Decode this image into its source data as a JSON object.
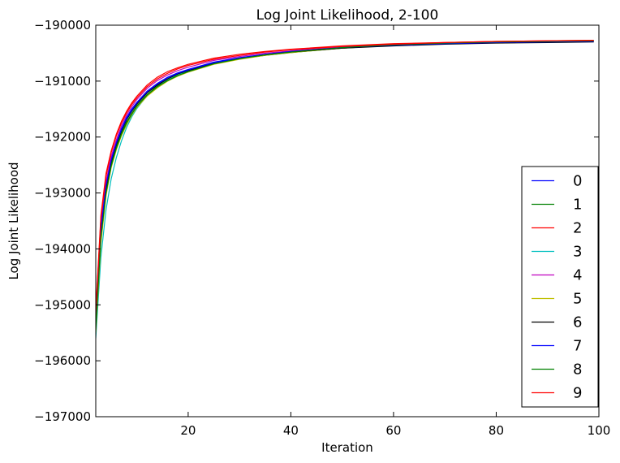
{
  "chart_data": {
    "type": "line",
    "title": "Log Joint Likelihood, 2-100",
    "xlabel": "Iteration",
    "ylabel": "Log Joint Likelihood",
    "xlim": [
      2,
      100
    ],
    "ylim": [
      -197000,
      -190000
    ],
    "xticks": [
      20,
      40,
      60,
      80,
      100
    ],
    "yticks": [
      -197000,
      -196000,
      -195000,
      -194000,
      -193000,
      -192000,
      -191000,
      -190000
    ],
    "xtick_labels": [
      "20",
      "40",
      "60",
      "80",
      "100"
    ],
    "ytick_labels": [
      "−197000",
      "−196000",
      "−195000",
      "−194000",
      "−193000",
      "−192000",
      "−191000",
      "−190000"
    ],
    "grid": false,
    "legend_position": "lower-right",
    "x": [
      2,
      3,
      4,
      5,
      6,
      7,
      8,
      9,
      10,
      12,
      14,
      16,
      18,
      20,
      25,
      30,
      35,
      40,
      50,
      60,
      70,
      80,
      90,
      99
    ],
    "series": [
      {
        "name": "0",
        "color": "#0000ff",
        "values": [
          -195300,
          -193600,
          -192850,
          -192400,
          -192100,
          -191850,
          -191650,
          -191500,
          -191380,
          -191180,
          -191040,
          -190930,
          -190850,
          -190790,
          -190660,
          -190580,
          -190520,
          -190470,
          -190400,
          -190360,
          -190330,
          -190310,
          -190300,
          -190290
        ]
      },
      {
        "name": "1",
        "color": "#008000",
        "values": [
          -195400,
          -193750,
          -192950,
          -192480,
          -192170,
          -191930,
          -191730,
          -191580,
          -191440,
          -191240,
          -191090,
          -190980,
          -190890,
          -190830,
          -190690,
          -190600,
          -190540,
          -190490,
          -190410,
          -190360,
          -190330,
          -190310,
          -190290,
          -190280
        ]
      },
      {
        "name": "2",
        "color": "#ff0000",
        "values": [
          -195100,
          -193400,
          -192650,
          -192250,
          -191950,
          -191720,
          -191540,
          -191390,
          -191270,
          -191070,
          -190930,
          -190830,
          -190760,
          -190700,
          -190590,
          -190520,
          -190470,
          -190430,
          -190370,
          -190330,
          -190310,
          -190290,
          -190280,
          -190270
        ]
      },
      {
        "name": "3",
        "color": "#00bfbf",
        "values": [
          -195600,
          -194150,
          -193300,
          -192750,
          -192370,
          -192070,
          -191830,
          -191640,
          -191490,
          -191260,
          -191100,
          -190980,
          -190890,
          -190820,
          -190690,
          -190600,
          -190530,
          -190480,
          -190400,
          -190350,
          -190320,
          -190300,
          -190290,
          -190280
        ]
      },
      {
        "name": "4",
        "color": "#bf00bf",
        "values": [
          -195200,
          -193550,
          -192800,
          -192350,
          -192050,
          -191800,
          -191610,
          -191460,
          -191330,
          -191130,
          -190990,
          -190890,
          -190810,
          -190750,
          -190630,
          -190560,
          -190500,
          -190460,
          -190390,
          -190350,
          -190320,
          -190300,
          -190290,
          -190280
        ]
      },
      {
        "name": "5",
        "color": "#bfbf00",
        "values": [
          -195500,
          -193900,
          -193050,
          -192550,
          -192230,
          -191980,
          -191780,
          -191610,
          -191470,
          -191270,
          -191120,
          -191000,
          -190910,
          -190840,
          -190700,
          -190610,
          -190540,
          -190490,
          -190410,
          -190360,
          -190330,
          -190310,
          -190290,
          -190280
        ]
      },
      {
        "name": "6",
        "color": "#000000",
        "values": [
          -195350,
          -193700,
          -192900,
          -192440,
          -192130,
          -191890,
          -191690,
          -191540,
          -191410,
          -191210,
          -191070,
          -190960,
          -190870,
          -190810,
          -190680,
          -190590,
          -190530,
          -190480,
          -190410,
          -190370,
          -190340,
          -190320,
          -190310,
          -190300
        ]
      },
      {
        "name": "7",
        "color": "#0000ff",
        "values": [
          -195250,
          -193650,
          -192870,
          -192420,
          -192110,
          -191870,
          -191670,
          -191520,
          -191390,
          -191190,
          -191050,
          -190940,
          -190860,
          -190800,
          -190670,
          -190590,
          -190520,
          -190470,
          -190400,
          -190360,
          -190330,
          -190310,
          -190300,
          -190290
        ]
      },
      {
        "name": "8",
        "color": "#008000",
        "values": [
          -195450,
          -193800,
          -193000,
          -192520,
          -192200,
          -191950,
          -191750,
          -191590,
          -191450,
          -191250,
          -191100,
          -190990,
          -190900,
          -190830,
          -190690,
          -190600,
          -190530,
          -190480,
          -190400,
          -190350,
          -190320,
          -190300,
          -190290,
          -190280
        ]
      },
      {
        "name": "9",
        "color": "#ff0000",
        "values": [
          -195150,
          -193450,
          -192700,
          -192280,
          -191980,
          -191750,
          -191570,
          -191420,
          -191300,
          -191100,
          -190960,
          -190860,
          -190780,
          -190720,
          -190610,
          -190540,
          -190480,
          -190440,
          -190380,
          -190340,
          -190310,
          -190290,
          -190280,
          -190270
        ]
      }
    ]
  }
}
